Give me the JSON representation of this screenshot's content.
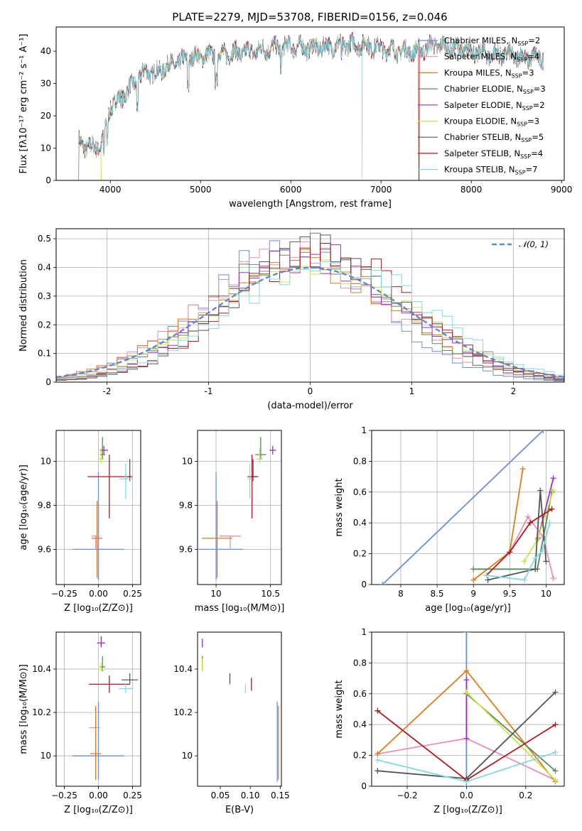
{
  "figure": {
    "title": "PLATE=2279, MJD=53708, FIBERID=0156, z=0.046"
  },
  "models": [
    {
      "name": "Chabrier MILES",
      "nssp": "2",
      "color": "#6a8fd6"
    },
    {
      "name": "Salpeter MILES",
      "nssp": "4",
      "color": "#e98fb6"
    },
    {
      "name": "Kroupa MILES",
      "nssp": "3",
      "color": "#e07b1a"
    },
    {
      "name": "Chabrier ELODIE",
      "nssp": "3",
      "color": "#5b8a5b"
    },
    {
      "name": "Salpeter ELODIE",
      "nssp": "2",
      "color": "#9a2ec2"
    },
    {
      "name": "Kroupa ELODIE",
      "nssp": "3",
      "color": "#c7e64a"
    },
    {
      "name": "Chabrier STELIB",
      "nssp": "5",
      "color": "#555555"
    },
    {
      "name": "Salpeter STELIB",
      "nssp": "4",
      "color": "#b0191e"
    },
    {
      "name": "Kroupa STELIB",
      "nssp": "7",
      "color": "#84d8e0"
    }
  ],
  "chart_data": [
    {
      "id": "spectrum",
      "type": "line",
      "xlabel": "wavelength [Angstrom, rest frame]",
      "ylabel": "Flux [fλ10⁻¹⁷ erg cm⁻² s⁻¹ A⁻¹]",
      "xlim": [
        3400,
        9030
      ],
      "ylim": [
        0,
        47.5
      ],
      "xticks": [
        4000,
        5000,
        6000,
        7000,
        8000,
        9000
      ],
      "yticks": [
        0,
        10,
        20,
        30,
        40
      ],
      "legend_position": "top-right",
      "continuum": {
        "x": [
          3650,
          3700,
          3800,
          3900,
          4000,
          4100,
          4200,
          4300,
          4400,
          4500,
          4600,
          4700,
          4800,
          4900,
          5000,
          5200,
          5400,
          5600,
          5800,
          6000,
          6200,
          6400,
          6600,
          6800,
          7000,
          7200,
          7400,
          7600,
          7800,
          8000,
          8200,
          8400,
          8600,
          8800
        ],
        "y": [
          12,
          11,
          10,
          11,
          23,
          25,
          28,
          31,
          34,
          33,
          35,
          36,
          37,
          38,
          38.5,
          39,
          39.5,
          40,
          41,
          41.5,
          41,
          41.5,
          42,
          42,
          41,
          40,
          40,
          42,
          41,
          40,
          39,
          39,
          38,
          38
        ]
      }
    },
    {
      "id": "residuals",
      "type": "histogram",
      "xlabel": "(data-model)/error",
      "ylabel": "Normed distribution",
      "xlim": [
        -2.5,
        2.5
      ],
      "ylim": [
        0,
        0.535
      ],
      "xticks": [
        -2,
        -1,
        0,
        1,
        2
      ],
      "yticks": [
        0.0,
        0.1,
        0.2,
        0.3,
        0.4,
        0.5
      ],
      "bin_width": 0.1,
      "reference_curve": "gaussian-mean-0-sigma-1",
      "legend_label": "𝒩(0, 1)",
      "legend_position": "top-right",
      "grid": true
    },
    {
      "id": "age-vs-z",
      "type": "errorbar",
      "xlabel": "Z [log₁₀(Z/Z⊙)]",
      "ylabel": "age  [log₁₀(age/yr)]",
      "xlim": [
        -0.31,
        0.31
      ],
      "ylim": [
        9.44,
        10.14
      ],
      "xticks": [
        -0.25,
        0.0,
        0.25
      ],
      "xtick_labels": [
        "−0.25",
        "0.00",
        "0.25"
      ],
      "yticks": [
        9.6,
        9.8,
        10.0
      ],
      "grid": true,
      "points": [
        {
          "x": 0.0,
          "xerr": 0.19,
          "y": 9.6,
          "yerr_lo": 0.14,
          "yerr_hi": 0.35
        },
        {
          "x": -0.02,
          "xerr": 0.03,
          "y": 9.66,
          "yerr_lo": 0.06,
          "yerr_hi": 0.0
        },
        {
          "x": -0.01,
          "xerr": 0.04,
          "y": 9.65,
          "yerr_lo": 0.18,
          "yerr_hi": 0.17
        },
        {
          "x": 0.03,
          "xerr": 0.02,
          "y": 10.03,
          "yerr_lo": 0.02,
          "yerr_hi": 0.08
        },
        {
          "x": 0.04,
          "xerr": 0.03,
          "y": 10.05,
          "yerr_lo": 0.02,
          "yerr_hi": 0.02
        },
        {
          "x": 0.02,
          "xerr": 0.02,
          "y": 10.01,
          "yerr_lo": 0.02,
          "yerr_hi": 0.05
        },
        {
          "x": 0.23,
          "xerr": 0.02,
          "y": 9.93,
          "yerr_lo": 0.02,
          "yerr_hi": 0.08
        },
        {
          "x": 0.08,
          "xerr": 0.16,
          "y": 9.93,
          "yerr_lo": 0.19,
          "yerr_hi": 0.1
        },
        {
          "x": 0.2,
          "xerr": 0.05,
          "y": 9.92,
          "yerr_lo": 0.09,
          "yerr_hi": 0.07
        }
      ]
    },
    {
      "id": "age-vs-mass",
      "type": "errorbar",
      "xlabel": "mass [log₁₀(M/M⊙)]",
      "ylabel": "",
      "xlim": [
        9.83,
        10.6
      ],
      "ylim": [
        9.44,
        10.14
      ],
      "xticks": [
        10.0,
        10.5
      ],
      "yticks": [
        9.6,
        9.8,
        10.0
      ],
      "grid": true,
      "points": [
        {
          "x": 10.0,
          "xerr": 0.25,
          "y": 9.6,
          "yerr_lo": 0.14,
          "yerr_hi": 0.35
        },
        {
          "x": 10.13,
          "xerr": 0.1,
          "y": 9.66,
          "yerr_lo": 0.06,
          "yerr_hi": 0.0
        },
        {
          "x": 10.01,
          "xerr": 0.14,
          "y": 9.65,
          "yerr_lo": 0.18,
          "yerr_hi": 0.17
        },
        {
          "x": 10.41,
          "xerr": 0.05,
          "y": 10.03,
          "yerr_lo": 0.02,
          "yerr_hi": 0.08
        },
        {
          "x": 10.52,
          "xerr": 0.03,
          "y": 10.05,
          "yerr_lo": 0.02,
          "yerr_hi": 0.02
        },
        {
          "x": 10.4,
          "xerr": 0.03,
          "y": 10.01,
          "yerr_lo": 0.02,
          "yerr_hi": 0.05
        },
        {
          "x": 10.34,
          "xerr": 0.05,
          "y": 9.93,
          "yerr_lo": 0.02,
          "yerr_hi": 0.08
        },
        {
          "x": 10.33,
          "xerr": 0.04,
          "y": 9.93,
          "yerr_lo": 0.19,
          "yerr_hi": 0.1
        },
        {
          "x": 10.31,
          "xerr": 0.02,
          "y": 9.92,
          "yerr_lo": 0.09,
          "yerr_hi": 0.07
        }
      ]
    },
    {
      "id": "weight-vs-age",
      "type": "line",
      "xlabel": "age  [log₁₀(age/yr)]",
      "ylabel": "mass weight",
      "xlim": [
        7.6,
        10.25
      ],
      "ylim": [
        0,
        1
      ],
      "xticks": [
        8.0,
        8.5,
        9.0,
        9.5,
        10.0
      ],
      "yticks": [
        0.0,
        0.2,
        0.4,
        0.6,
        0.8,
        1.0
      ],
      "grid": true,
      "series": [
        {
          "x": [
            7.75,
            9.96
          ],
          "y": [
            0.0,
            1.0
          ]
        },
        {
          "x": [
            9.5,
            9.75,
            9.96,
            10.1
          ],
          "y": [
            0.21,
            0.44,
            0.31,
            0.04
          ]
        },
        {
          "x": [
            9.0,
            9.5,
            9.68
          ],
          "y": [
            0.03,
            0.21,
            0.75
          ]
        },
        {
          "x": [
            9.0,
            9.88,
            10.08
          ],
          "y": [
            0.1,
            0.1,
            0.6
          ]
        },
        {
          "x": [
            9.89,
            10.1
          ],
          "y": [
            0.3,
            0.69
          ]
        },
        {
          "x": [
            9.7,
            9.88,
            10.1
          ],
          "y": [
            0.15,
            0.29,
            0.61
          ]
        },
        {
          "x": [
            9.2,
            9.85,
            9.92,
            10.0
          ],
          "y": [
            0.03,
            0.1,
            0.61,
            0.15
          ]
        },
        {
          "x": [
            9.18,
            9.5,
            9.78,
            10.08
          ],
          "y": [
            0.06,
            0.21,
            0.4,
            0.49
          ]
        },
        {
          "x": [
            9.18,
            9.7,
            9.85,
            9.95,
            10.05
          ],
          "y": [
            0.06,
            0.03,
            0.17,
            0.22,
            0.4
          ]
        }
      ]
    },
    {
      "id": "mass-vs-z",
      "type": "errorbar",
      "xlabel": "Z [log₁₀(Z/Z⊙)]",
      "ylabel": "mass [log₁₀(M/M⊙)]",
      "xlim": [
        -0.31,
        0.31
      ],
      "ylim": [
        9.86,
        10.57
      ],
      "xticks": [
        -0.25,
        0.0,
        0.25
      ],
      "xtick_labels": [
        "−0.25",
        "0.00",
        "0.25"
      ],
      "yticks": [
        10.0,
        10.2,
        10.4
      ],
      "grid": true,
      "points": [
        {
          "x": 0.0,
          "xerr": 0.19,
          "y": 10.0,
          "yerr_lo": 0.11,
          "yerr_hi": 0.25
        },
        {
          "x": -0.03,
          "xerr": 0.04,
          "y": 10.13,
          "yerr_lo": 0.0,
          "yerr_hi": 0.0
        },
        {
          "x": -0.02,
          "xerr": 0.04,
          "y": 10.01,
          "yerr_lo": 0.12,
          "yerr_hi": 0.22
        },
        {
          "x": 0.03,
          "xerr": 0.02,
          "y": 10.41,
          "yerr_lo": 0.02,
          "yerr_hi": 0.05
        },
        {
          "x": 0.02,
          "xerr": 0.03,
          "y": 10.52,
          "yerr_lo": 0.02,
          "yerr_hi": 0.03
        },
        {
          "x": 0.02,
          "xerr": 0.03,
          "y": 10.4,
          "yerr_lo": 0.01,
          "yerr_hi": 0.03
        },
        {
          "x": 0.23,
          "xerr": 0.06,
          "y": 10.35,
          "yerr_lo": 0.02,
          "yerr_hi": 0.03
        },
        {
          "x": 0.08,
          "xerr": 0.15,
          "y": 10.33,
          "yerr_lo": 0.04,
          "yerr_hi": 0.04
        },
        {
          "x": 0.2,
          "xerr": 0.05,
          "y": 10.31,
          "yerr_lo": 0.02,
          "yerr_hi": 0.02
        }
      ]
    },
    {
      "id": "mass-vs-ebv",
      "type": "errorbar",
      "xlabel": "E(B-V)",
      "ylabel": "",
      "xlim": [
        0.012,
        0.152
      ],
      "ylim": [
        9.86,
        10.57
      ],
      "xticks": [
        0.05,
        0.1,
        0.15
      ],
      "xtick_labels": [
        "0.05",
        "0.10",
        "0.15"
      ],
      "yticks": [
        10.0,
        10.2,
        10.4
      ],
      "grid": false,
      "points": [
        {
          "x": 0.145,
          "xerr": 0.0,
          "y": 10.0,
          "yerr_lo": 0.12,
          "yerr_hi": 0.25
        },
        {
          "x": 0.146,
          "xerr": 0.0,
          "y": 10.13,
          "yerr_lo": 0.0,
          "yerr_hi": 0.0
        },
        {
          "x": 0.147,
          "xerr": 0.0,
          "y": 10.01,
          "yerr_lo": 0.12,
          "yerr_hi": 0.22
        },
        {
          "x": 0.02,
          "xerr": 0.0,
          "y": 10.41,
          "yerr_lo": 0.02,
          "yerr_hi": 0.05
        },
        {
          "x": 0.02,
          "xerr": 0.0,
          "y": 10.52,
          "yerr_lo": 0.02,
          "yerr_hi": 0.02
        },
        {
          "x": 0.02,
          "xerr": 0.0,
          "y": 10.41,
          "yerr_lo": 0.02,
          "yerr_hi": 0.04
        },
        {
          "x": 0.066,
          "xerr": 0.0,
          "y": 10.35,
          "yerr_lo": 0.02,
          "yerr_hi": 0.03
        },
        {
          "x": 0.102,
          "xerr": 0.0,
          "y": 10.33,
          "yerr_lo": 0.03,
          "yerr_hi": 0.03
        },
        {
          "x": 0.092,
          "xerr": 0.0,
          "y": 10.31,
          "yerr_lo": 0.02,
          "yerr_hi": 0.02
        }
      ]
    },
    {
      "id": "weight-vs-z",
      "type": "line",
      "xlabel": "Z [log₁₀(Z/Z⊙)]",
      "ylabel": "mass weight",
      "xlim": [
        -0.32,
        0.33
      ],
      "ylim": [
        0,
        1
      ],
      "xticks": [
        -0.2,
        0.0,
        0.2
      ],
      "xtick_labels": [
        "−0.2",
        "0.0",
        "0.2"
      ],
      "yticks": [
        0.0,
        0.2,
        0.4,
        0.6,
        0.8,
        1.0
      ],
      "grid": true,
      "series": [
        {
          "x": [
            0.0,
            0.0
          ],
          "y": [
            0.0,
            1.0
          ]
        },
        {
          "x": [
            -0.3,
            0.0,
            0.3
          ],
          "y": [
            0.21,
            0.31,
            0.04
          ]
        },
        {
          "x": [
            -0.3,
            0.0,
            0.3
          ],
          "y": [
            0.21,
            0.75,
            0.03
          ]
        },
        {
          "x": [
            0.0,
            0.3
          ],
          "y": [
            0.6,
            0.1
          ]
        },
        {
          "x": [
            0.0,
            0.0
          ],
          "y": [
            0.31,
            0.69
          ]
        },
        {
          "x": [
            0.0,
            0.3
          ],
          "y": [
            0.61,
            0.04
          ]
        },
        {
          "x": [
            -0.3,
            0.0,
            0.3
          ],
          "y": [
            0.1,
            0.05,
            0.61
          ]
        },
        {
          "x": [
            -0.3,
            0.0,
            0.3
          ],
          "y": [
            0.49,
            0.04,
            0.4
          ]
        },
        {
          "x": [
            -0.3,
            0.0,
            0.3
          ],
          "y": [
            0.17,
            0.03,
            0.22
          ]
        }
      ]
    }
  ]
}
